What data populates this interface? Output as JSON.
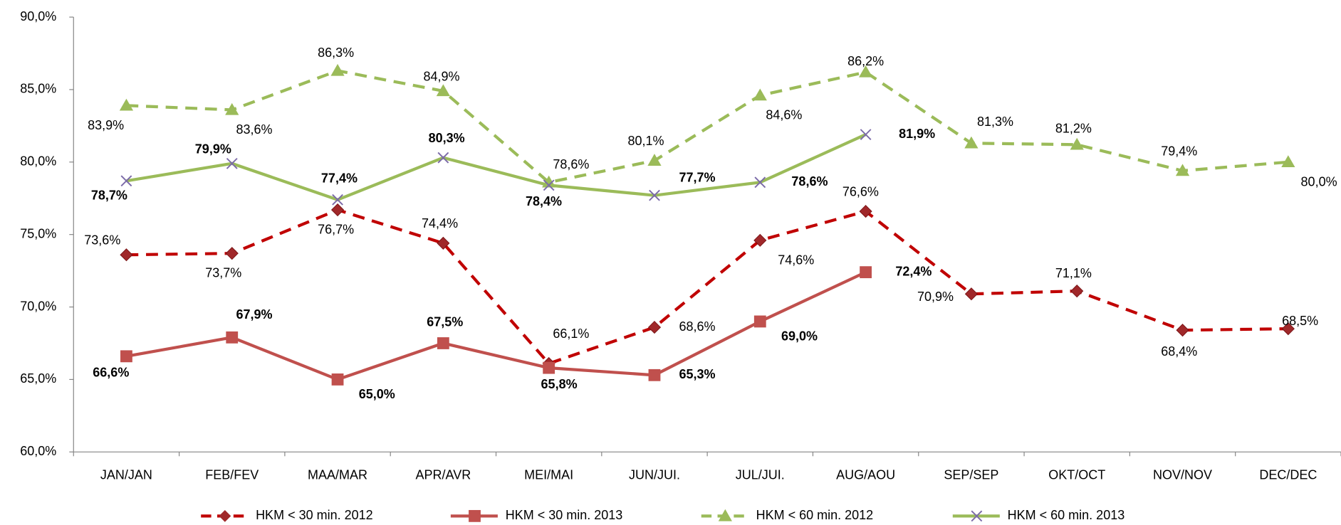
{
  "chart_data": {
    "type": "line",
    "categories": [
      "JAN/JAN",
      "FEB/FEV",
      "MAA/MAR",
      "APR/AVR",
      "MEI/MAI",
      "JUN/JUI.",
      "JUL/JUI.",
      "AUG/AOU",
      "SEP/SEP",
      "OKT/OCT",
      "NOV/NOV",
      "DEC/DEC"
    ],
    "ylim": [
      60,
      90
    ],
    "yticks": [
      {
        "value": 60,
        "label": "60,0%"
      },
      {
        "value": 65,
        "label": "65,0%"
      },
      {
        "value": 70,
        "label": "70,0%"
      },
      {
        "value": 75,
        "label": "75,0%"
      },
      {
        "value": 80,
        "label": "80,0%"
      },
      {
        "value": 85,
        "label": "85,0%"
      },
      {
        "value": 90,
        "label": "90,0%"
      }
    ],
    "grid": false,
    "legend": "bottom",
    "series": [
      {
        "name": "HKM < 30 min. 2012",
        "color": "#c00000",
        "marker_color": "#a0282a",
        "marker": "diamond",
        "dashed": true,
        "label_bold": false,
        "values": [
          73.6,
          73.7,
          76.7,
          74.4,
          66.1,
          68.6,
          74.6,
          76.6,
          70.9,
          71.1,
          68.4,
          68.5
        ],
        "value_labels": [
          "73,6%",
          "73,7%",
          "76,7%",
          "74,4%",
          "66,1%",
          "68,6%",
          "74,6%",
          "76,6%",
          "70,9%",
          "71,1%",
          "68,4%",
          "68,5%"
        ]
      },
      {
        "name": "HKM < 30 min. 2013",
        "color": "#c0504d",
        "marker_color": "#c0504d",
        "marker": "square",
        "dashed": false,
        "label_bold": true,
        "values": [
          66.6,
          67.9,
          65.0,
          67.5,
          65.8,
          65.3,
          69.0,
          72.4,
          null,
          null,
          null,
          null
        ],
        "value_labels": [
          "66,6%",
          "67,9%",
          "65,0%",
          "67,5%",
          "65,8%",
          "65,3%",
          "69,0%",
          "72,4%",
          null,
          null,
          null,
          null
        ]
      },
      {
        "name": "HKM < 60 min. 2012",
        "color": "#9bbb59",
        "marker_color": "#9bbb59",
        "marker": "triangle",
        "dashed": true,
        "label_bold": false,
        "values": [
          83.9,
          83.6,
          86.3,
          84.9,
          78.6,
          80.1,
          84.6,
          86.2,
          81.3,
          81.2,
          79.4,
          80.0
        ],
        "value_labels": [
          "83,9%",
          "83,6%",
          "86,3%",
          "84,9%",
          "78,6%",
          "80,1%",
          "84,6%",
          "86,2%",
          "81,3%",
          "81,2%",
          "79,4%",
          "80,0%"
        ]
      },
      {
        "name": "HKM < 60 min. 2013",
        "color": "#9bbb59",
        "marker_color": "#7b6aa8",
        "marker": "x",
        "dashed": false,
        "label_bold": true,
        "values": [
          78.7,
          79.9,
          77.4,
          80.3,
          78.4,
          77.7,
          78.6,
          81.9,
          null,
          null,
          null,
          null
        ],
        "value_labels": [
          "78,7%",
          "79,9%",
          "77,4%",
          "80,3%",
          "78,4%",
          "77,7%",
          "78,6%",
          "81,9%",
          null,
          null,
          null,
          null
        ]
      }
    ]
  }
}
